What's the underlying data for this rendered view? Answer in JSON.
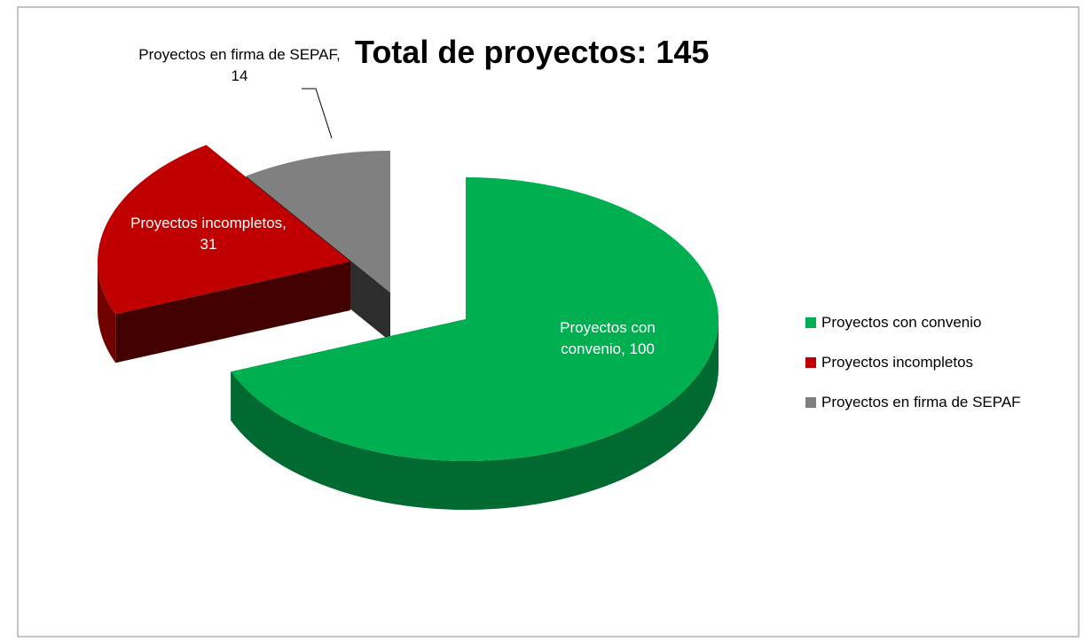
{
  "chart_data": {
    "type": "pie",
    "title": "Total de proyectos:  145",
    "categories": [
      "Proyectos con convenio",
      "Proyectos incompletos",
      "Proyectos en firma de SEPAF"
    ],
    "values": [
      100,
      31,
      14
    ],
    "value_labels": [
      "Proyectos con convenio, 100",
      "Proyectos incompletos, 31",
      "Proyectos en firma de SEPAF, 14"
    ],
    "colors": [
      "#00b050",
      "#c00000",
      "#808080"
    ],
    "legend": "right"
  }
}
